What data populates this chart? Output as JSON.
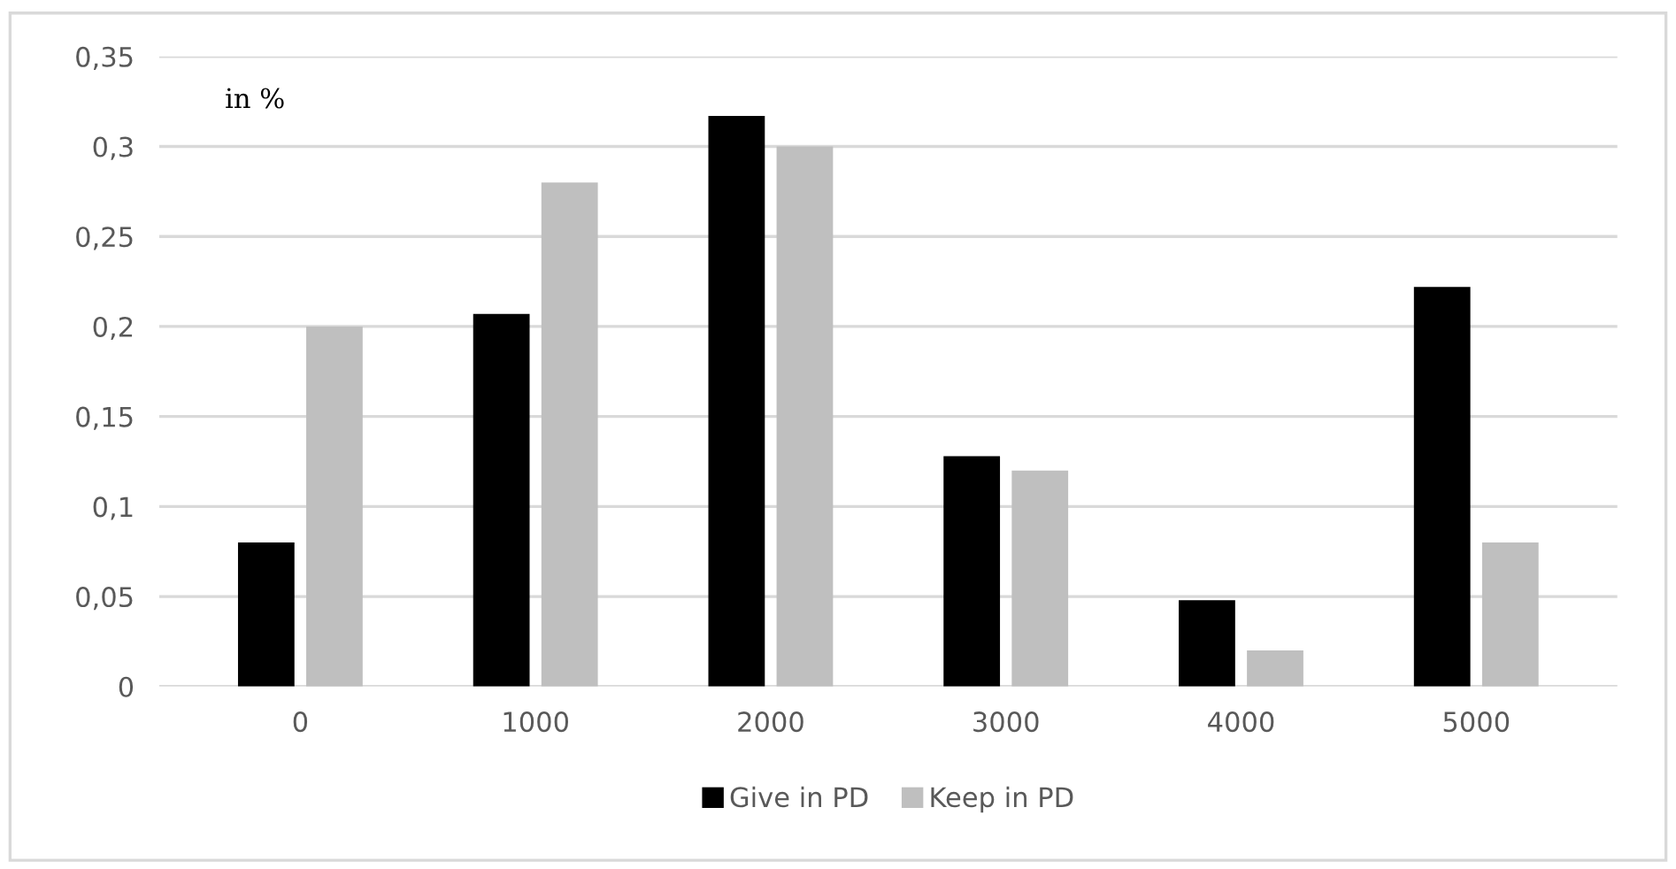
{
  "chart_data": {
    "type": "bar",
    "categories": [
      "0",
      "1000",
      "2000",
      "3000",
      "4000",
      "5000"
    ],
    "series": [
      {
        "name": "Give in PD",
        "color": "#000000",
        "values": [
          0.08,
          0.207,
          0.317,
          0.128,
          0.048,
          0.222
        ]
      },
      {
        "name": "Keep in PD",
        "color": "#bfbfbf",
        "values": [
          0.2,
          0.28,
          0.3,
          0.12,
          0.02,
          0.08
        ]
      }
    ],
    "ylim": [
      0,
      0.35
    ],
    "yticks": [
      0,
      {
        "value": 0.05,
        "label": "0,05"
      },
      {
        "value": 0.1,
        "label": "0,1"
      },
      {
        "value": 0.15,
        "label": "0,15"
      },
      {
        "value": 0.2,
        "label": "0,2"
      },
      {
        "value": 0.25,
        "label": "0,25"
      },
      {
        "value": 0.3,
        "label": "0,3"
      },
      {
        "value": 0.35,
        "label": "0,35"
      }
    ],
    "annotations": [
      "in %"
    ],
    "grid": "y",
    "legend": "bottom"
  }
}
